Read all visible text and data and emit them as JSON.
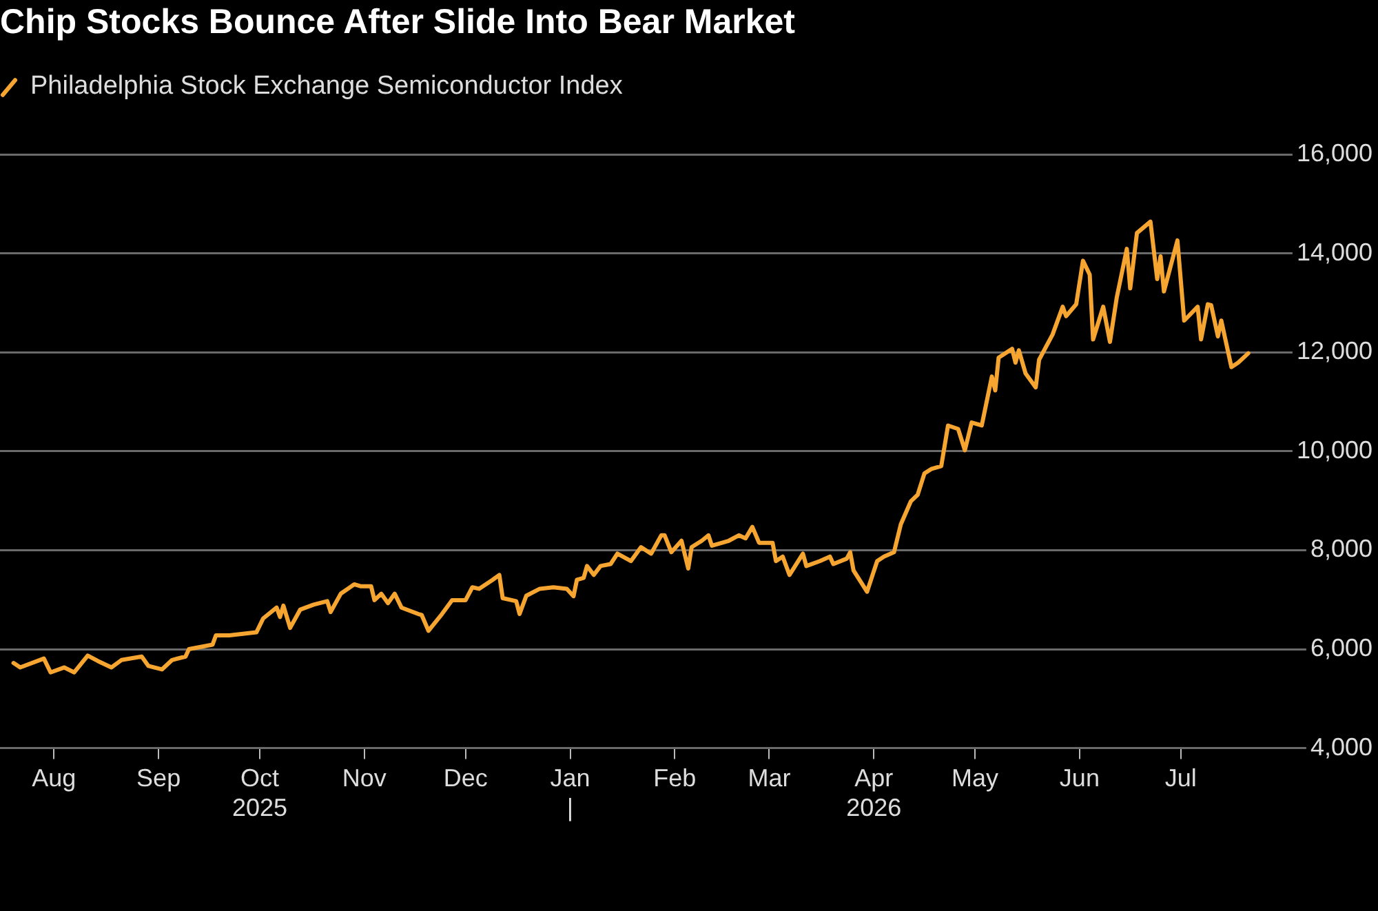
{
  "chart_data": {
    "type": "line",
    "title": "Chip Stocks Bounce After Slide Into Bear Market",
    "x": [
      "2025-07-20",
      "2025-07-22",
      "2025-07-29",
      "2025-07-31",
      "2025-08-04",
      "2025-08-07",
      "2025-08-11",
      "2025-08-14",
      "2025-08-18",
      "2025-08-21",
      "2025-08-27",
      "2025-08-29",
      "2025-09-02",
      "2025-09-05",
      "2025-09-09",
      "2025-09-10",
      "2025-09-17",
      "2025-09-18",
      "2025-09-22",
      "2025-09-30",
      "2025-10-02",
      "2025-10-06",
      "2025-10-07",
      "2025-10-08",
      "2025-10-10",
      "2025-10-13",
      "2025-10-17",
      "2025-10-21",
      "2025-10-22",
      "2025-10-25",
      "2025-10-29",
      "2025-10-31",
      "2025-11-03",
      "2025-11-04",
      "2025-11-06",
      "2025-11-08",
      "2025-11-10",
      "2025-11-12",
      "2025-11-17",
      "2025-11-18",
      "2025-11-20",
      "2025-11-24",
      "2025-11-27",
      "2025-12-01",
      "2025-12-03",
      "2025-12-05",
      "2025-12-09",
      "2025-12-11",
      "2025-12-12",
      "2025-12-16",
      "2025-12-17",
      "2025-12-19",
      "2025-12-23",
      "2025-12-27",
      "2025-12-31",
      "2026-01-02",
      "2026-01-03",
      "2026-01-05",
      "2026-01-06",
      "2026-01-08",
      "2026-01-10",
      "2026-01-13",
      "2026-01-15",
      "2026-01-19",
      "2026-01-22",
      "2026-01-25",
      "2026-01-28",
      "2026-01-29",
      "2026-01-31",
      "2026-02-03",
      "2026-02-05",
      "2026-02-06",
      "2026-02-09",
      "2026-02-11",
      "2026-02-12",
      "2026-02-17",
      "2026-02-20",
      "2026-02-22",
      "2026-02-24",
      "2026-02-26",
      "2026-03-02",
      "2026-03-03",
      "2026-03-05",
      "2026-03-07",
      "2026-03-11",
      "2026-03-12",
      "2026-03-16",
      "2026-03-19",
      "2026-03-20",
      "2026-03-24",
      "2026-03-25",
      "2026-03-26",
      "2026-03-30",
      "2026-04-02",
      "2026-04-04",
      "2026-04-07",
      "2026-04-09",
      "2026-04-12",
      "2026-04-14",
      "2026-04-16",
      "2026-04-18",
      "2026-04-21",
      "2026-04-23",
      "2026-04-26",
      "2026-04-28",
      "2026-04-30",
      "2026-05-03",
      "2026-05-06",
      "2026-05-07",
      "2026-05-08",
      "2026-05-12",
      "2026-05-13",
      "2026-05-14",
      "2026-05-16",
      "2026-05-19",
      "2026-05-20",
      "2026-05-24",
      "2026-05-27",
      "2026-05-28",
      "2026-05-31",
      "2026-06-02",
      "2026-06-04",
      "2026-06-05",
      "2026-06-08",
      "2026-06-10",
      "2026-06-12",
      "2026-06-15",
      "2026-06-16",
      "2026-06-18",
      "2026-06-22",
      "2026-06-24",
      "2026-06-25",
      "2026-06-26",
      "2026-06-30",
      "2026-07-02",
      "2026-07-06",
      "2026-07-07",
      "2026-07-09",
      "2026-07-10",
      "2026-07-12",
      "2026-07-13",
      "2026-07-16",
      "2026-07-18",
      "2026-07-21"
    ],
    "series": [
      {
        "name": "Philadelphia Stock Exchange Semiconductor Index",
        "color": "#f7a531",
        "values": [
          5720,
          5630,
          5810,
          5530,
          5630,
          5530,
          5870,
          5760,
          5630,
          5780,
          5850,
          5660,
          5590,
          5780,
          5850,
          6000,
          6090,
          6280,
          6280,
          6340,
          6620,
          6840,
          6650,
          6880,
          6430,
          6800,
          6900,
          6970,
          6750,
          7120,
          7310,
          7270,
          7270,
          6990,
          7120,
          6930,
          7120,
          6840,
          6710,
          6690,
          6370,
          6710,
          6990,
          6990,
          7250,
          7220,
          7400,
          7500,
          7030,
          6970,
          6710,
          7080,
          7220,
          7250,
          7220,
          7070,
          7400,
          7440,
          7680,
          7500,
          7680,
          7720,
          7930,
          7780,
          8060,
          7930,
          8300,
          8300,
          7960,
          8190,
          7630,
          8060,
          8190,
          8300,
          8090,
          8190,
          8300,
          8240,
          8470,
          8150,
          8150,
          7780,
          7870,
          7500,
          7930,
          7680,
          7780,
          7870,
          7720,
          7830,
          7960,
          7590,
          7160,
          7780,
          7870,
          7960,
          8520,
          8990,
          9120,
          9550,
          9640,
          9700,
          10520,
          10450,
          10020,
          10580,
          10520,
          11510,
          11230,
          11890,
          12070,
          11790,
          12040,
          11570,
          11290,
          11850,
          12360,
          12920,
          12730,
          12970,
          13850,
          13570,
          12260,
          12920,
          12210,
          13100,
          14090,
          13290,
          14410,
          14640,
          13480,
          13940,
          13230,
          14260,
          12640,
          12920,
          12260,
          12970,
          12950,
          12320,
          12640,
          11700,
          11790,
          11980
        ]
      }
    ],
    "xlim": [
      "2025-07-16",
      "2026-08-26"
    ],
    "xticks": [
      {
        "value": "2025-08-01",
        "label": "Aug"
      },
      {
        "value": "2025-09-01",
        "label": "Sep"
      },
      {
        "value": "2025-10-01",
        "label": "Oct\n2025"
      },
      {
        "value": "2025-11-01",
        "label": "Nov"
      },
      {
        "value": "2025-12-01",
        "label": "Dec"
      },
      {
        "value": "2026-01-01",
        "label": "Jan\n|"
      },
      {
        "value": "2026-02-01",
        "label": "Feb"
      },
      {
        "value": "2026-03-01",
        "label": "Mar"
      },
      {
        "value": "2026-04-01",
        "label": "Apr\n2026"
      },
      {
        "value": "2026-05-01",
        "label": "May"
      },
      {
        "value": "2026-06-01",
        "label": "Jun"
      },
      {
        "value": "2026-07-01",
        "label": "Jul"
      }
    ],
    "ylim": [
      4000,
      16000
    ],
    "yticks": [
      {
        "value": 4000,
        "label": "4,000"
      },
      {
        "value": 6000,
        "label": "6,000"
      },
      {
        "value": 8000,
        "label": "8,000"
      },
      {
        "value": 10000,
        "label": "10,000"
      },
      {
        "value": 12000,
        "label": "12,000"
      },
      {
        "value": 14000,
        "label": "14,000"
      },
      {
        "value": 16000,
        "label": "16,000"
      }
    ],
    "grid": "y",
    "legend": "top left",
    "marker": "none",
    "line_style": "solid"
  }
}
